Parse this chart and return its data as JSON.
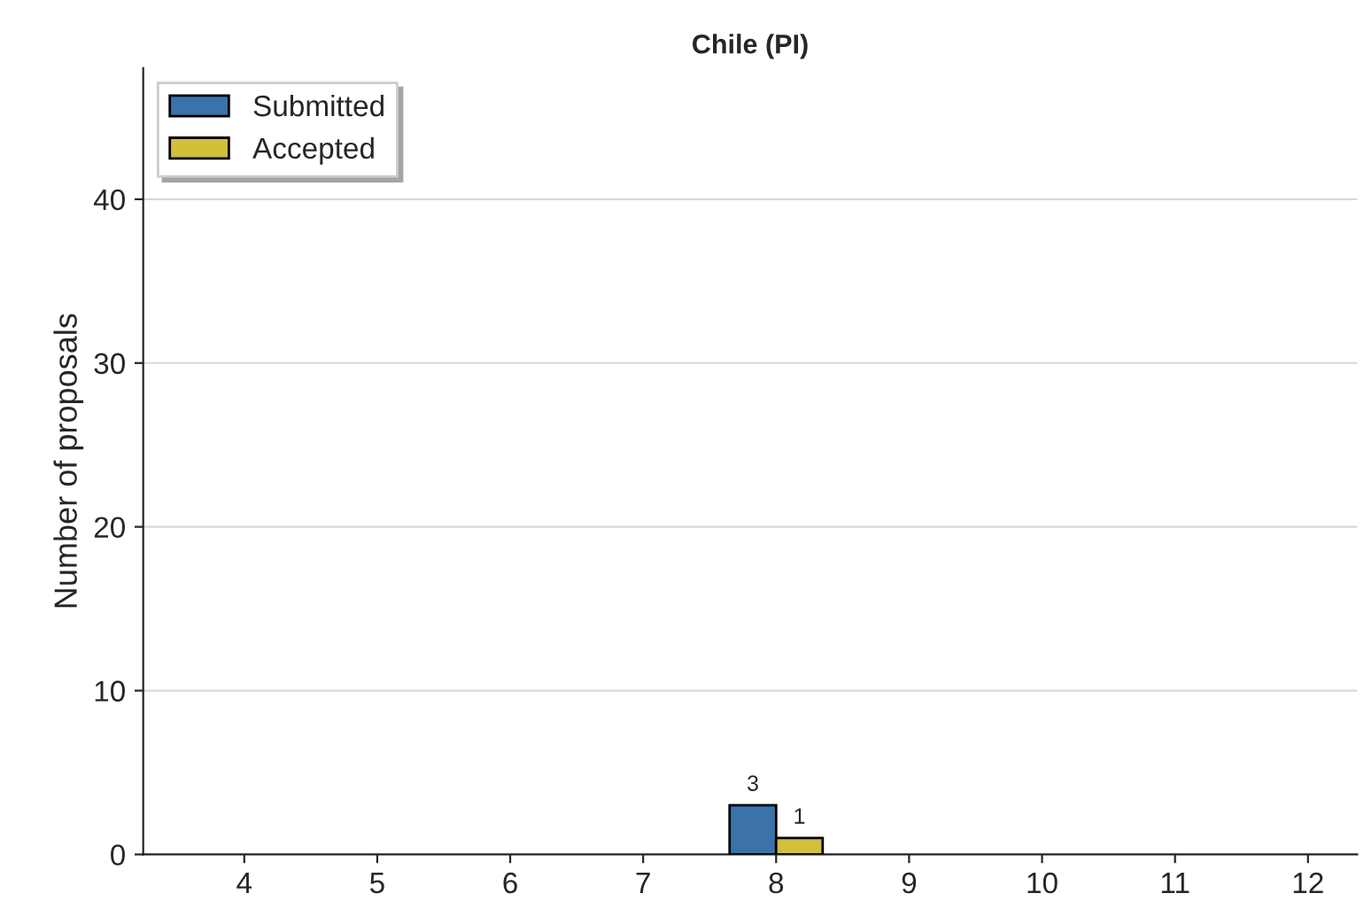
{
  "chart_data": {
    "type": "bar",
    "title": "Chile (PI)",
    "ylabel": "Number of proposals",
    "categories": [
      "4",
      "5",
      "6",
      "7",
      "8",
      "9",
      "10",
      "11",
      "12"
    ],
    "series": [
      {
        "name": "Submitted",
        "color": "#3c72aa",
        "values": [
          null,
          null,
          null,
          null,
          3,
          null,
          null,
          null,
          null
        ],
        "value_labels": [
          null,
          null,
          null,
          null,
          "3",
          null,
          null,
          null,
          null
        ]
      },
      {
        "name": "Accepted",
        "color": "#d2bf3c",
        "values": [
          null,
          null,
          null,
          null,
          1,
          null,
          null,
          null,
          null
        ],
        "value_labels": [
          null,
          null,
          null,
          null,
          "1",
          null,
          null,
          null,
          null
        ]
      }
    ],
    "ylim": [
      0,
      48
    ],
    "yticks": [
      0,
      10,
      20,
      30,
      40
    ],
    "grid": "y",
    "legend": "top left"
  }
}
